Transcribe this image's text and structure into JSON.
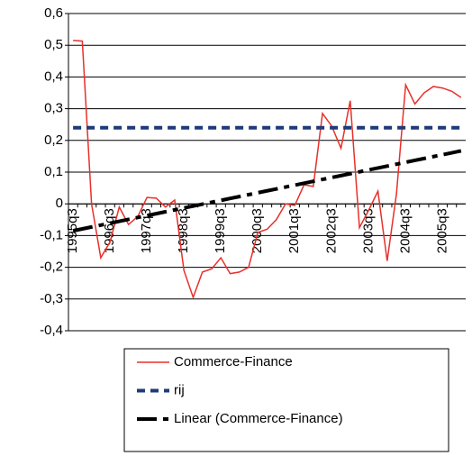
{
  "chart_data": {
    "type": "line",
    "categories": [
      "1995q3",
      null,
      null,
      null,
      "1996q3",
      null,
      null,
      null,
      "1997q3",
      null,
      null,
      null,
      "1998q3",
      null,
      null,
      null,
      "1999q3",
      null,
      null,
      null,
      "2000q3",
      null,
      null,
      null,
      "2001q3",
      null,
      null,
      null,
      "2002q3",
      null,
      null,
      null,
      "2003q3",
      null,
      null,
      null,
      "2004q3",
      null,
      null,
      null,
      "2005q3",
      null,
      null
    ],
    "series": [
      {
        "name": "Commerce-Finance",
        "color": "#e8302a",
        "dash": "solid",
        "values": [
          0.515,
          0.513,
          0.0,
          -0.17,
          -0.12,
          -0.01,
          -0.065,
          -0.04,
          0.02,
          0.018,
          -0.01,
          0.012,
          -0.21,
          -0.295,
          -0.215,
          -0.205,
          -0.17,
          -0.22,
          -0.215,
          -0.2,
          -0.09,
          -0.08,
          -0.05,
          0.0,
          -0.005,
          0.06,
          0.055,
          0.285,
          0.245,
          0.175,
          0.325,
          -0.075,
          -0.02,
          0.04,
          -0.18,
          0.03,
          0.375,
          0.315,
          0.35,
          0.37,
          0.365,
          0.355,
          0.335
        ]
      },
      {
        "name": "rij",
        "color": "#1f3a7a",
        "dash": "short",
        "values": [
          0.24,
          0.24,
          0.24,
          0.24,
          0.24,
          0.24,
          0.24,
          0.24,
          0.24,
          0.24,
          0.24,
          0.24,
          0.24,
          0.24,
          0.24,
          0.24,
          0.24,
          0.24,
          0.24,
          0.24,
          0.24,
          0.24,
          0.24,
          0.24,
          0.24,
          0.24,
          0.24,
          0.24,
          0.24,
          0.24,
          0.24,
          0.24,
          0.24,
          0.24,
          0.24,
          0.24,
          0.24,
          0.24,
          0.24,
          0.24,
          0.24,
          0.24,
          0.24
        ]
      },
      {
        "name": "Linear (Commerce-Finance)",
        "color": "#000000",
        "dash": "long",
        "values": [
          -0.085,
          -0.079,
          -0.073,
          -0.067,
          -0.061,
          -0.055,
          -0.049,
          -0.043,
          -0.037,
          -0.031,
          -0.025,
          -0.019,
          -0.013,
          -0.007,
          -0.001,
          0.005,
          0.011,
          0.017,
          0.023,
          0.029,
          0.035,
          0.041,
          0.047,
          0.053,
          0.059,
          0.065,
          0.071,
          0.077,
          0.083,
          0.089,
          0.095,
          0.101,
          0.107,
          0.113,
          0.119,
          0.125,
          0.131,
          0.137,
          0.143,
          0.149,
          0.155,
          0.161,
          0.167
        ]
      }
    ],
    "ylim": [
      -0.4,
      0.6
    ],
    "yticks": [
      {
        "value": -0.4,
        "label": "-0,4"
      },
      {
        "value": -0.3,
        "label": "-0,3"
      },
      {
        "value": -0.2,
        "label": "-0,2"
      },
      {
        "value": -0.1,
        "label": "-0,1"
      },
      0,
      {
        "value": 0.1,
        "label": "0,1"
      },
      {
        "value": 0.2,
        "label": "0,2"
      },
      {
        "value": 0.3,
        "label": "0,3"
      },
      {
        "value": 0.4,
        "label": "0,4"
      },
      {
        "value": 0.5,
        "label": "0,5"
      },
      {
        "value": 0.6,
        "label": "0,6"
      }
    ],
    "grid": true
  }
}
